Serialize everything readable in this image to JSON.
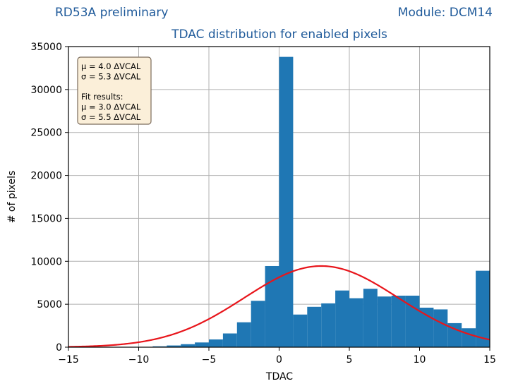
{
  "header": {
    "left": "RD53A preliminary",
    "right": "Module: DCM14"
  },
  "chart_data": {
    "type": "bar",
    "title": "TDAC distribution for enabled pixels",
    "xlabel": "TDAC",
    "ylabel": "# of pixels",
    "xlim": [
      -15,
      15
    ],
    "ylim": [
      0,
      35000
    ],
    "xticks": [
      -15,
      -10,
      -5,
      0,
      5,
      10,
      15
    ],
    "xtick_labels": [
      "−15",
      "−10",
      "−5",
      "0",
      "5",
      "10",
      "15"
    ],
    "yticks": [
      0,
      5000,
      10000,
      15000,
      20000,
      25000,
      30000,
      35000
    ],
    "ytick_labels": [
      "0",
      "5000",
      "10000",
      "15000",
      "20000",
      "25000",
      "30000",
      "35000"
    ],
    "grid": true,
    "bar_color": "#1f77b4",
    "bins": [
      {
        "x": -8.5,
        "value": 100
      },
      {
        "x": -7.5,
        "value": 200
      },
      {
        "x": -6.5,
        "value": 350
      },
      {
        "x": -5.5,
        "value": 550
      },
      {
        "x": -4.5,
        "value": 900
      },
      {
        "x": -3.5,
        "value": 1600
      },
      {
        "x": -2.5,
        "value": 2900
      },
      {
        "x": -1.5,
        "value": 5400
      },
      {
        "x": -0.5,
        "value": 9450
      },
      {
        "x": 0.5,
        "value": 33800
      },
      {
        "x": 1.5,
        "value": 3800
      },
      {
        "x": 2.5,
        "value": 4700
      },
      {
        "x": 3.5,
        "value": 5100
      },
      {
        "x": 4.5,
        "value": 6600
      },
      {
        "x": 5.5,
        "value": 5700
      },
      {
        "x": 6.5,
        "value": 6800
      },
      {
        "x": 7.5,
        "value": 5900
      },
      {
        "x": 8.5,
        "value": 6000
      },
      {
        "x": 9.5,
        "value": 6000
      },
      {
        "x": 10.5,
        "value": 4600
      },
      {
        "x": 11.5,
        "value": 4400
      },
      {
        "x": 12.5,
        "value": 2800
      },
      {
        "x": 13.5,
        "value": 2200
      },
      {
        "x": 14.5,
        "value": 8900
      }
    ],
    "fit": {
      "name": "Gaussian fit",
      "color": "#e8151b",
      "mu": 3.0,
      "sigma": 5.5,
      "amplitude": 9450
    },
    "annotation": {
      "lines": [
        "μ = 4.0 ΔVCAL",
        "σ = 5.3 ΔVCAL",
        "",
        "Fit results:",
        "μ = 3.0 ΔVCAL",
        "σ = 5.5 ΔVCAL"
      ],
      "background": "#fbefd9",
      "border": "#7a6a5a"
    }
  }
}
